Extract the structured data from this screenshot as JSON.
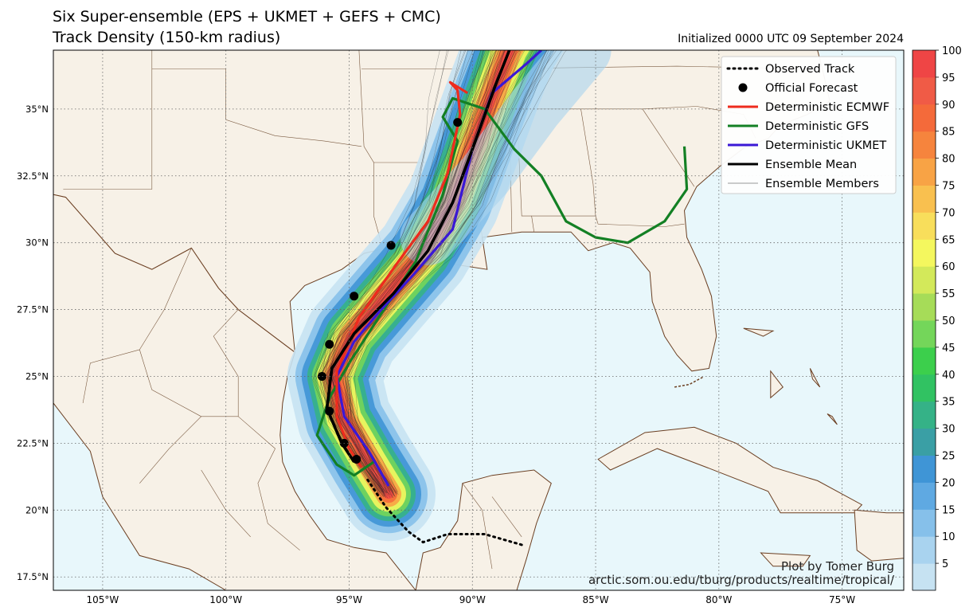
{
  "title": {
    "line1": "Six Super-ensemble (EPS + UKMET + GEFS + CMC)",
    "line2": "Track Density (150-km radius)",
    "initialized": "Initialized 0000 UTC 09 September 2024"
  },
  "credit": {
    "author": "Plot by Tomer Burg",
    "url": "arctic.som.ou.edu/tburg/products/realtime/tropical/"
  },
  "colors": {
    "land": "#f7f1e7",
    "ocean": "#e8f7fb",
    "border": "#6b3f22",
    "ecmwf": "#ee2b1d",
    "gfs": "#138024",
    "ukmet": "#3a18d6",
    "mean": "#000000"
  },
  "map": {
    "lon_ticks": [
      "105°W",
      "100°W",
      "95°W",
      "90°W",
      "85°W",
      "80°W",
      "75°W"
    ],
    "lat_ticks": [
      "35°N",
      "32.5°N",
      "30°N",
      "27.5°N",
      "25°N",
      "22.5°N",
      "20°N",
      "17.5°N"
    ],
    "lon_values": [
      -105,
      -100,
      -95,
      -90,
      -85,
      -80,
      -75
    ],
    "lat_values": [
      35,
      32.5,
      30,
      27.5,
      25,
      22.5,
      20,
      17.5
    ],
    "extent": {
      "lon": [
        -107,
        -72.5
      ],
      "lat": [
        17,
        37.2
      ]
    }
  },
  "legend": {
    "items": [
      {
        "label": "Observed Track",
        "style": "dotted"
      },
      {
        "label": "Official Forecast",
        "style": "dot"
      },
      {
        "label": "Deterministic ECMWF",
        "style": "ecmwf"
      },
      {
        "label": "Deterministic GFS",
        "style": "gfs"
      },
      {
        "label": "Deterministic UKMET",
        "style": "ukmet"
      },
      {
        "label": "Ensemble Mean",
        "style": "mean"
      },
      {
        "label": "Ensemble Members",
        "style": "member"
      }
    ],
    "placement": "top-right"
  },
  "colorbar": {
    "ticks": [
      "100",
      "95",
      "90",
      "85",
      "80",
      "75",
      "70",
      "65",
      "60",
      "55",
      "50",
      "45",
      "40",
      "35",
      "30",
      "25",
      "20",
      "15",
      "10",
      "5"
    ],
    "colors": [
      "#c6e2f2",
      "#a9d3ef",
      "#86c0ea",
      "#5fa9e2",
      "#3f95d6",
      "#3a9fa5",
      "#35b287",
      "#31c262",
      "#3ccf4c",
      "#74d65a",
      "#a6dc58",
      "#d3e95a",
      "#f4f75e",
      "#f8de5b",
      "#f9c04f",
      "#f8a345",
      "#f6843d",
      "#f46a3a",
      "#f05b46",
      "#ef4545"
    ]
  },
  "tracks": {
    "observed": [
      [
        -88.0,
        18.7
      ],
      [
        -89.5,
        19.1
      ],
      [
        -91.0,
        19.1
      ],
      [
        -92.0,
        18.8
      ],
      [
        -92.6,
        19.2
      ],
      [
        -93.5,
        20.1
      ],
      [
        -94.3,
        21.2
      ]
    ],
    "official": [
      [
        -94.7,
        21.9
      ],
      [
        -95.2,
        22.5
      ],
      [
        -95.8,
        23.7
      ],
      [
        -96.1,
        25.0
      ],
      [
        -95.8,
        26.2
      ],
      [
        -94.8,
        28.0
      ],
      [
        -93.3,
        29.9
      ],
      [
        -90.6,
        34.5
      ]
    ],
    "ecmwf": [
      [
        -94.5,
        21.6
      ],
      [
        -95.0,
        22.3
      ],
      [
        -95.5,
        23.5
      ],
      [
        -95.5,
        25.2
      ],
      [
        -94.6,
        27.2
      ],
      [
        -93.0,
        29.3
      ],
      [
        -91.8,
        30.8
      ],
      [
        -91.0,
        32.6
      ],
      [
        -90.5,
        34.8
      ],
      [
        -90.6,
        35.7
      ],
      [
        -90.9,
        36.0
      ],
      [
        -90.2,
        35.6
      ]
    ],
    "gfs": [
      [
        -94.0,
        21.8
      ],
      [
        -94.8,
        21.3
      ],
      [
        -95.5,
        21.7
      ],
      [
        -96.3,
        22.8
      ],
      [
        -95.8,
        24.2
      ],
      [
        -95.0,
        25.5
      ],
      [
        -93.8,
        27.2
      ],
      [
        -92.3,
        29.3
      ],
      [
        -91.2,
        31.8
      ],
      [
        -90.6,
        33.8
      ],
      [
        -91.2,
        34.7
      ],
      [
        -90.8,
        35.4
      ],
      [
        -89.5,
        35.0
      ],
      [
        -88.3,
        33.5
      ],
      [
        -87.2,
        32.5
      ],
      [
        -86.2,
        30.8
      ],
      [
        -85.0,
        30.2
      ],
      [
        -83.7,
        30.0
      ],
      [
        -82.2,
        30.8
      ],
      [
        -81.3,
        32.0
      ],
      [
        -81.4,
        33.6
      ]
    ],
    "ukmet": [
      [
        -93.4,
        20.9
      ],
      [
        -94.2,
        22.2
      ],
      [
        -95.2,
        23.5
      ],
      [
        -95.5,
        25.0
      ],
      [
        -94.8,
        26.3
      ],
      [
        -93.7,
        27.5
      ],
      [
        -92.4,
        28.8
      ],
      [
        -90.8,
        30.5
      ],
      [
        -90.0,
        33.5
      ],
      [
        -89.2,
        35.6
      ],
      [
        -87.8,
        36.7
      ],
      [
        -87.2,
        37.2
      ]
    ],
    "mean": [
      [
        -94.8,
        21.8
      ],
      [
        -95.3,
        22.5
      ],
      [
        -95.9,
        23.8
      ],
      [
        -95.7,
        25.3
      ],
      [
        -94.8,
        26.6
      ],
      [
        -93.2,
        28.1
      ],
      [
        -91.8,
        29.7
      ],
      [
        -90.8,
        31.5
      ],
      [
        -90.0,
        33.5
      ],
      [
        -89.1,
        35.8
      ],
      [
        -88.5,
        37.2
      ]
    ]
  }
}
